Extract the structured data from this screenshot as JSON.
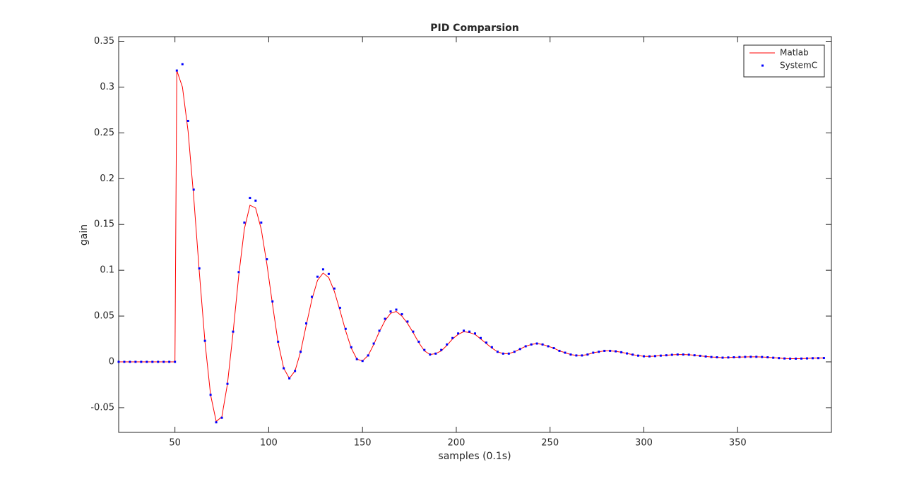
{
  "chart_data": {
    "type": "line",
    "title": "PID Comparsion",
    "x_label": "samples (0.1s)",
    "y_label": "gain",
    "x": [
      20,
      23,
      26,
      29,
      32,
      35,
      38,
      41,
      44,
      47,
      50,
      51,
      54,
      57,
      60,
      63,
      66,
      69,
      72,
      75,
      78,
      81,
      84,
      87,
      90,
      93,
      96,
      99,
      102,
      105,
      108,
      111,
      114,
      117,
      120,
      123,
      126,
      129,
      132,
      135,
      138,
      141,
      144,
      147,
      150,
      153,
      156,
      159,
      162,
      165,
      168,
      171,
      174,
      177,
      180,
      183,
      186,
      189,
      192,
      195,
      198,
      201,
      204,
      207,
      210,
      213,
      216,
      219,
      222,
      225,
      228,
      231,
      234,
      237,
      240,
      243,
      246,
      249,
      252,
      255,
      258,
      261,
      264,
      267,
      270,
      273,
      276,
      279,
      282,
      285,
      288,
      291,
      294,
      297,
      300,
      303,
      306,
      309,
      312,
      315,
      318,
      321,
      324,
      327,
      330,
      333,
      336,
      339,
      342,
      345,
      348,
      351,
      354,
      357,
      360,
      363,
      366,
      369,
      372,
      375,
      378,
      381,
      384,
      387,
      390,
      393,
      396
    ],
    "series": [
      {
        "name": "Matlab",
        "color": "#ff0000",
        "style": "line",
        "values": [
          0,
          0,
          0,
          0,
          0,
          0,
          0,
          0,
          0,
          0,
          0,
          0.318,
          0.3,
          0.252,
          0.18,
          0.098,
          0.022,
          -0.036,
          -0.065,
          -0.06,
          -0.024,
          0.032,
          0.094,
          0.145,
          0.171,
          0.168,
          0.145,
          0.107,
          0.063,
          0.021,
          -0.007,
          -0.018,
          -0.01,
          0.011,
          0.04,
          0.068,
          0.089,
          0.097,
          0.092,
          0.077,
          0.056,
          0.034,
          0.015,
          0.003,
          0.001,
          0.007,
          0.019,
          0.033,
          0.045,
          0.053,
          0.055,
          0.05,
          0.042,
          0.032,
          0.021,
          0.012,
          0.008,
          0.009,
          0.012,
          0.018,
          0.025,
          0.03,
          0.033,
          0.032,
          0.03,
          0.025,
          0.02,
          0.015,
          0.011,
          0.009,
          0.009,
          0.011,
          0.014,
          0.017,
          0.019,
          0.02,
          0.019,
          0.017,
          0.015,
          0.012,
          0.01,
          0.008,
          0.007,
          0.007,
          0.008,
          0.01,
          0.011,
          0.012,
          0.012,
          0.0115,
          0.0105,
          0.0092,
          0.0079,
          0.0068,
          0.0061,
          0.006,
          0.0063,
          0.0068,
          0.0072,
          0.0077,
          0.008,
          0.008,
          0.0078,
          0.0072,
          0.0066,
          0.0059,
          0.0053,
          0.005,
          0.0046,
          0.0048,
          0.005,
          0.0052,
          0.0054,
          0.0055,
          0.0055,
          0.0053,
          0.005,
          0.0045,
          0.0041,
          0.0037,
          0.0035,
          0.0035,
          0.0036,
          0.0038,
          0.004,
          0.0041,
          0.0042
        ]
      },
      {
        "name": "SystemC",
        "color": "#0000ff",
        "style": "dots",
        "values": [
          0,
          0,
          0,
          0,
          0,
          0,
          0,
          0,
          0,
          0,
          0,
          0.318,
          0.325,
          0.263,
          0.188,
          0.102,
          0.023,
          -0.036,
          -0.066,
          -0.061,
          -0.024,
          0.033,
          0.098,
          0.152,
          0.179,
          0.176,
          0.152,
          0.112,
          0.066,
          0.022,
          -0.007,
          -0.018,
          -0.01,
          0.011,
          0.042,
          0.071,
          0.093,
          0.101,
          0.096,
          0.08,
          0.059,
          0.036,
          0.016,
          0.003,
          0.001,
          0.007,
          0.02,
          0.034,
          0.047,
          0.055,
          0.057,
          0.052,
          0.044,
          0.033,
          0.022,
          0.013,
          0.008,
          0.009,
          0.013,
          0.019,
          0.026,
          0.031,
          0.034,
          0.033,
          0.031,
          0.026,
          0.021,
          0.016,
          0.011,
          0.009,
          0.009,
          0.011,
          0.014,
          0.017,
          0.019,
          0.02,
          0.019,
          0.017,
          0.015,
          0.012,
          0.01,
          0.008,
          0.007,
          0.007,
          0.008,
          0.01,
          0.011,
          0.012,
          0.012,
          0.0115,
          0.0105,
          0.0092,
          0.0079,
          0.0068,
          0.0061,
          0.006,
          0.0063,
          0.0068,
          0.0072,
          0.0077,
          0.008,
          0.008,
          0.0078,
          0.0072,
          0.0066,
          0.0059,
          0.0053,
          0.005,
          0.0046,
          0.0048,
          0.005,
          0.0052,
          0.0054,
          0.0055,
          0.0055,
          0.0053,
          0.005,
          0.0045,
          0.0041,
          0.0037,
          0.0035,
          0.0035,
          0.0036,
          0.0038,
          0.004,
          0.0041,
          0.0042
        ]
      }
    ],
    "xlim": [
      20,
      400
    ],
    "ylim": [
      -0.077,
      0.355
    ],
    "xticks": [
      50,
      100,
      150,
      200,
      250,
      300,
      350
    ],
    "yticks": [
      -0.05,
      0,
      0.05,
      0.1,
      0.15,
      0.2,
      0.25,
      0.3,
      0.35
    ],
    "grid": false,
    "legend": "northeast"
  }
}
